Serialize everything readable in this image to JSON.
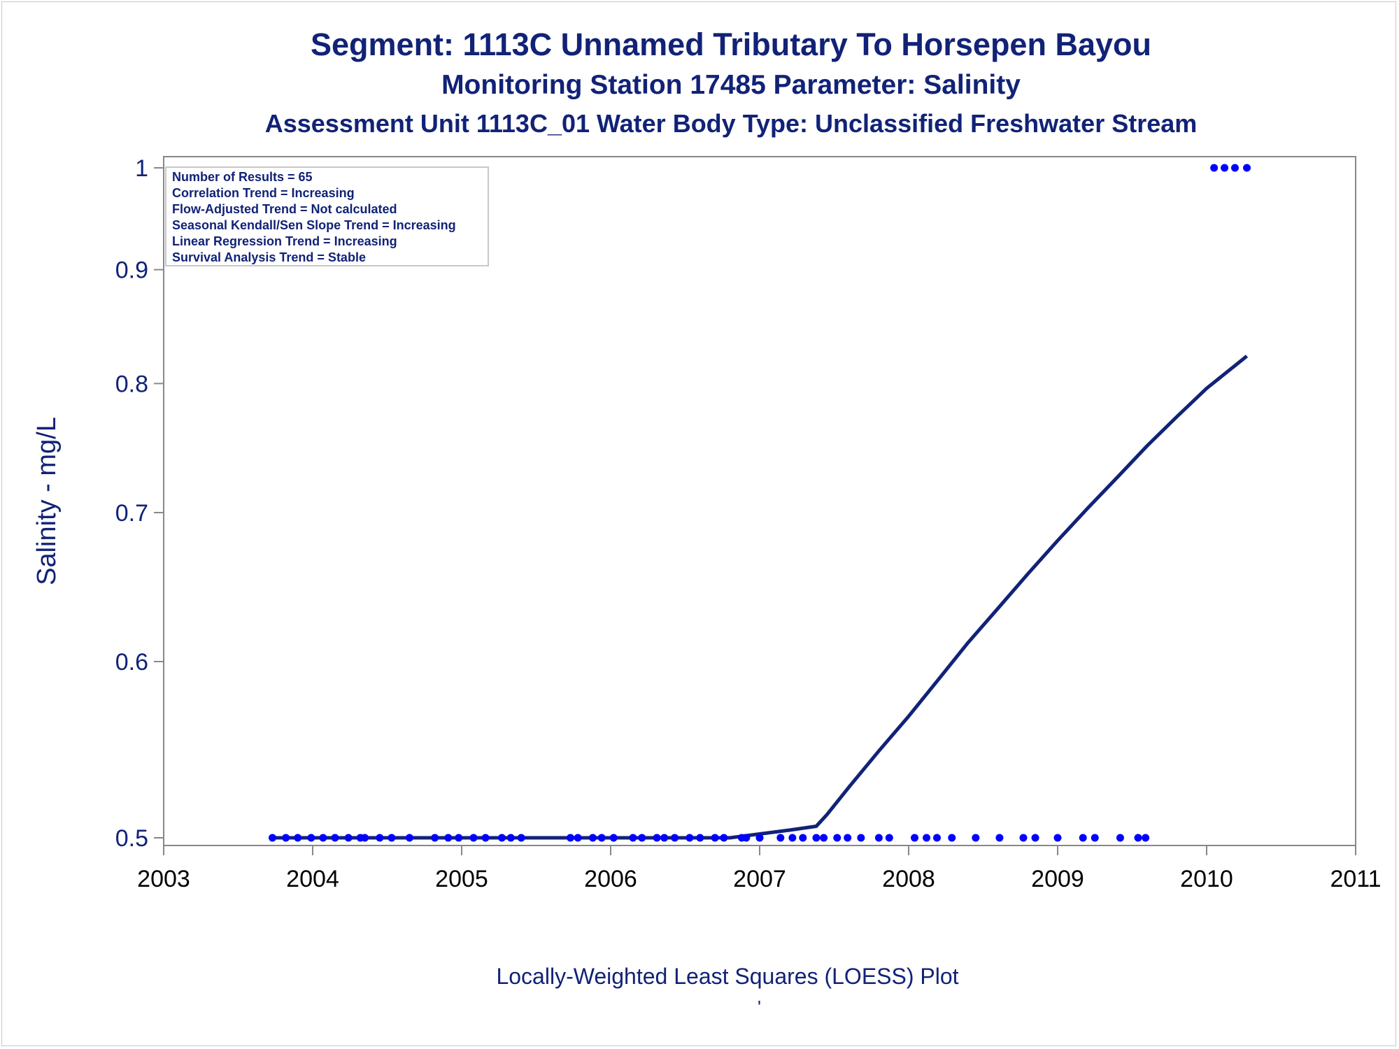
{
  "titles": {
    "line1": "Segment: 1113C  Unnamed Tributary To Horsepen Bayou",
    "line2": "Monitoring Station 17485 Parameter: Salinity",
    "line3": "Assessment Unit 1113C_01   Water Body Type: Unclassified Freshwater Stream"
  },
  "footnote": "Locally-Weighted Least Squares (LOESS) Plot",
  "footer_mark": "'",
  "colors": {
    "text": "#112277",
    "points": "#0000ff",
    "loess": "#112277",
    "axis": "#888888"
  },
  "chart_data": {
    "type": "scatter",
    "title": "Segment: 1113C  Unnamed Tributary To Horsepen Bayou",
    "xlabel": "",
    "ylabel": "Salinity - mg/L",
    "xlim": [
      2003,
      2011
    ],
    "ylim": [
      0.5,
      1.0
    ],
    "y_scale": "log",
    "x_ticks": [
      "2003",
      "2004",
      "2005",
      "2006",
      "2007",
      "2008",
      "2009",
      "2010",
      "2011"
    ],
    "y_ticks": [
      "0.5",
      "0.6",
      "0.7",
      "0.8",
      "0.9",
      "1"
    ],
    "grid": false,
    "stats_box": {
      "placement": "top-left",
      "lines": [
        "Number of Results = 65",
        "Correlation Trend = Increasing",
        "Flow-Adjusted Trend = Not calculated",
        "Seasonal Kendall/Sen Slope Trend = Increasing",
        "Linear Regression Trend = Increasing",
        "Survival Analysis Trend = Stable"
      ]
    },
    "series": [
      {
        "type": "scatter",
        "points": [
          [
            2003.73,
            0.5
          ],
          [
            2003.82,
            0.5
          ],
          [
            2003.9,
            0.5
          ],
          [
            2003.99,
            0.5
          ],
          [
            2004.07,
            0.5
          ],
          [
            2004.15,
            0.5
          ],
          [
            2004.24,
            0.5
          ],
          [
            2004.32,
            0.5
          ],
          [
            2004.35,
            0.5
          ],
          [
            2004.45,
            0.5
          ],
          [
            2004.53,
            0.5
          ],
          [
            2004.65,
            0.5
          ],
          [
            2004.82,
            0.5
          ],
          [
            2004.91,
            0.5
          ],
          [
            2004.98,
            0.5
          ],
          [
            2005.08,
            0.5
          ],
          [
            2005.16,
            0.5
          ],
          [
            2005.27,
            0.5
          ],
          [
            2005.33,
            0.5
          ],
          [
            2005.4,
            0.5
          ],
          [
            2005.73,
            0.5
          ],
          [
            2005.78,
            0.5
          ],
          [
            2005.88,
            0.5
          ],
          [
            2005.94,
            0.5
          ],
          [
            2006.02,
            0.5
          ],
          [
            2006.15,
            0.5
          ],
          [
            2006.21,
            0.5
          ],
          [
            2006.31,
            0.5
          ],
          [
            2006.36,
            0.5
          ],
          [
            2006.43,
            0.5
          ],
          [
            2006.53,
            0.5
          ],
          [
            2006.6,
            0.5
          ],
          [
            2006.7,
            0.5
          ],
          [
            2006.76,
            0.5
          ],
          [
            2006.88,
            0.5
          ],
          [
            2006.91,
            0.5
          ],
          [
            2007.0,
            0.5
          ],
          [
            2007.14,
            0.5
          ],
          [
            2007.22,
            0.5
          ],
          [
            2007.29,
            0.5
          ],
          [
            2007.38,
            0.5
          ],
          [
            2007.43,
            0.5
          ],
          [
            2007.52,
            0.5
          ],
          [
            2007.59,
            0.5
          ],
          [
            2007.68,
            0.5
          ],
          [
            2007.8,
            0.5
          ],
          [
            2007.87,
            0.5
          ],
          [
            2008.04,
            0.5
          ],
          [
            2008.12,
            0.5
          ],
          [
            2008.19,
            0.5
          ],
          [
            2008.29,
            0.5
          ],
          [
            2008.45,
            0.5
          ],
          [
            2008.61,
            0.5
          ],
          [
            2008.77,
            0.5
          ],
          [
            2008.85,
            0.5
          ],
          [
            2009.0,
            0.5
          ],
          [
            2009.17,
            0.5
          ],
          [
            2009.25,
            0.5
          ],
          [
            2009.42,
            0.5
          ],
          [
            2009.54,
            0.5
          ],
          [
            2009.59,
            0.5
          ],
          [
            2010.05,
            1.0
          ],
          [
            2010.12,
            1.0
          ],
          [
            2010.19,
            1.0
          ],
          [
            2010.27,
            1.0
          ]
        ]
      },
      {
        "type": "line",
        "points": [
          [
            2003.73,
            0.5
          ],
          [
            2004.5,
            0.5
          ],
          [
            2005.5,
            0.5
          ],
          [
            2006.5,
            0.5
          ],
          [
            2006.8,
            0.5
          ],
          [
            2007.0,
            0.502
          ],
          [
            2007.2,
            0.504
          ],
          [
            2007.38,
            0.506
          ],
          [
            2007.45,
            0.512
          ],
          [
            2007.6,
            0.527
          ],
          [
            2007.8,
            0.547
          ],
          [
            2008.0,
            0.567
          ],
          [
            2008.2,
            0.589
          ],
          [
            2008.4,
            0.612
          ],
          [
            2008.6,
            0.634
          ],
          [
            2008.8,
            0.657
          ],
          [
            2009.0,
            0.68
          ],
          [
            2009.2,
            0.703
          ],
          [
            2009.4,
            0.726
          ],
          [
            2009.6,
            0.75
          ],
          [
            2009.8,
            0.773
          ],
          [
            2010.0,
            0.796
          ],
          [
            2010.27,
            0.823
          ]
        ]
      }
    ]
  }
}
